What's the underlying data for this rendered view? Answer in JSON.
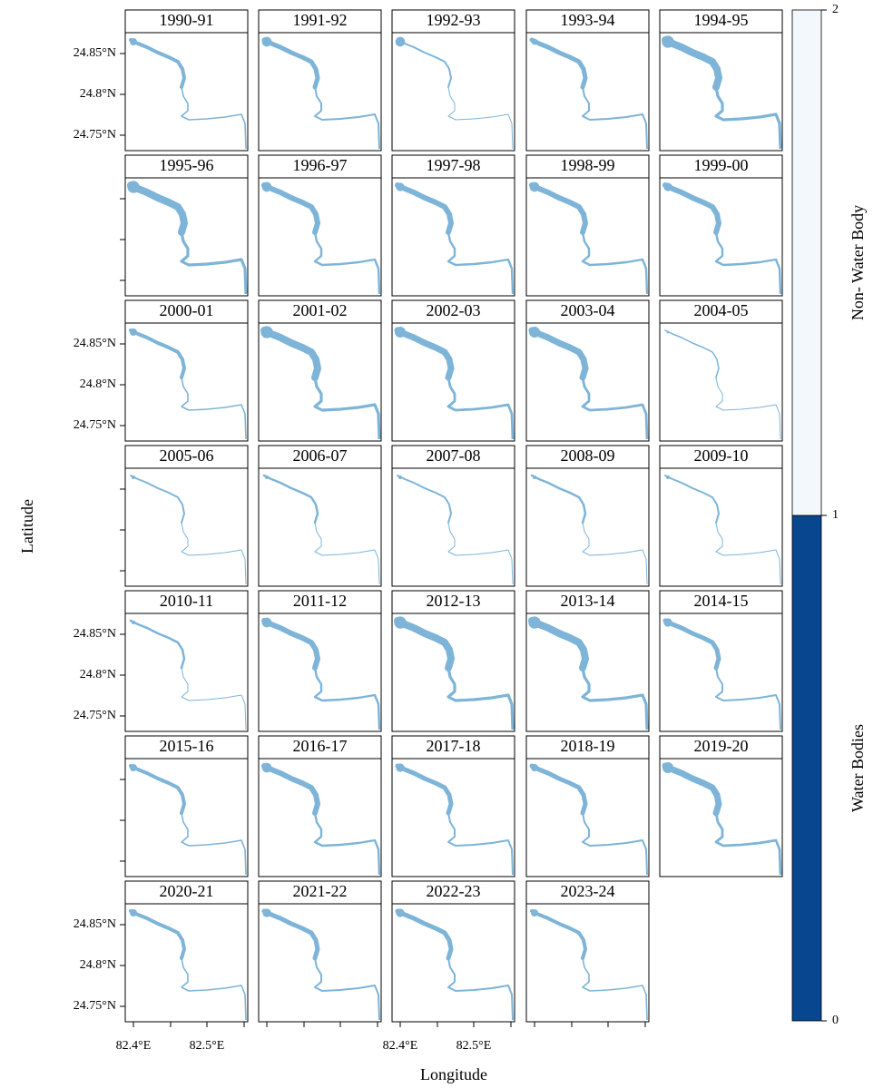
{
  "panels": [
    "1990-91",
    "1991-92",
    "1992-93",
    "1993-94",
    "1994-95",
    "1995-96",
    "1996-97",
    "1997-98",
    "1998-99",
    "1999-00",
    "2000-01",
    "2001-02",
    "2002-03",
    "2003-04",
    "2004-05",
    "2005-06",
    "2006-07",
    "2007-08",
    "2008-09",
    "2009-10",
    "2010-11",
    "2011-12",
    "2012-13",
    "2013-14",
    "2014-15",
    "2015-16",
    "2016-17",
    "2017-18",
    "2018-19",
    "2019-20",
    "2020-21",
    "2021-22",
    "2022-23",
    "2023-24"
  ],
  "y_axis": {
    "label": "Latitude",
    "ticks": [
      "24.85°N",
      "24.8°N",
      "24.75°N"
    ]
  },
  "x_axis": {
    "label": "Longitude",
    "ticks": [
      "82.4°E",
      "82.5°E"
    ]
  },
  "colorbar": {
    "ticks": [
      0,
      1,
      2
    ],
    "labels": [
      "Water Bodies",
      "Non- Water Body"
    ],
    "colors": [
      "#08468f",
      "#f3f8fd"
    ]
  }
}
